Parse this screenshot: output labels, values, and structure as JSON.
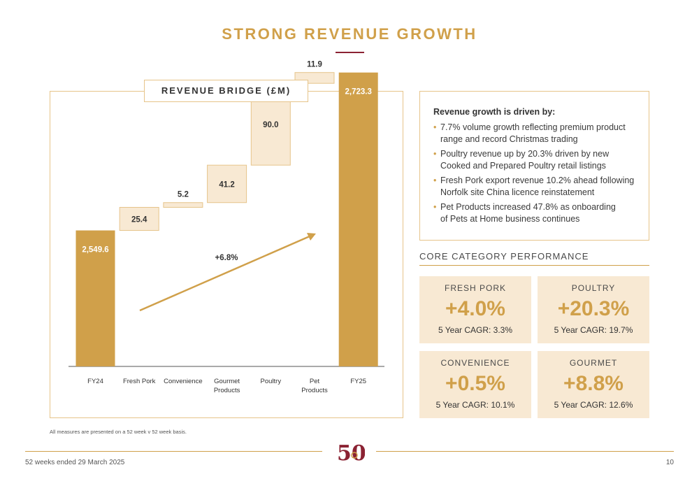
{
  "page": {
    "title": "STRONG REVENUE GROWTH",
    "footnote": "All measures are presented on a 52 week v 52 week basis.",
    "footer_left": "52 weeks ended 29 March 2025",
    "page_number": "10"
  },
  "chart_panel": {
    "header": "REVENUE BRIDGE (£M)"
  },
  "chart_data": {
    "type": "waterfall",
    "title": "REVENUE BRIDGE (£M)",
    "categories": [
      "FY24",
      "Fresh Pork",
      "Convenience",
      "Gourmet Products",
      "Poultry",
      "Pet Products",
      "FY25"
    ],
    "category_lines": [
      [
        "FY24"
      ],
      [
        "Fresh Pork"
      ],
      [
        "Convenience"
      ],
      [
        "Gourmet",
        "Products"
      ],
      [
        "Poultry"
      ],
      [
        "Pet",
        "Products"
      ],
      [
        "FY25"
      ]
    ],
    "values": [
      2549.6,
      25.4,
      5.2,
      41.2,
      90.0,
      11.9,
      2723.3
    ],
    "value_labels": [
      "2,549.6",
      "25.4",
      "5.2",
      "41.2",
      "90.0",
      "11.9",
      "2,723.3"
    ],
    "kinds": [
      "total",
      "increase",
      "increase",
      "increase",
      "increase",
      "increase",
      "total"
    ],
    "growth_label": "+6.8%",
    "colors": {
      "total": "#d0a04a",
      "increase_fill": "#f8e9d3",
      "increase_stroke": "#e6c48a",
      "arrow": "#d0a04a",
      "axis": "#555555"
    },
    "grid": false
  },
  "drivers": {
    "heading": "Revenue growth is driven by:",
    "bullet": "•",
    "items": [
      [
        "7.7% volume growth reflecting premium product",
        "range and record Christmas trading"
      ],
      [
        "Poultry revenue up by 20.3% driven by new",
        "Cooked and Prepared Poultry retail listings"
      ],
      [
        "Fresh Pork export revenue 10.2% ahead following",
        "Norfolk site China licence reinstatement"
      ],
      [
        "Pet Products increased 47.8% as onboarding",
        "of Pets at Home business continues"
      ]
    ]
  },
  "core": {
    "title": "CORE CATEGORY PERFORMANCE",
    "tiles": [
      {
        "name": "FRESH PORK",
        "value": "+4.0%",
        "cagr": "5 Year CAGR: 3.3%"
      },
      {
        "name": "POULTRY",
        "value": "+20.3%",
        "cagr": "5 Year CAGR: 19.7%"
      },
      {
        "name": "CONVENIENCE",
        "value": "+0.5%",
        "cagr": "5 Year CAGR: 10.1%"
      },
      {
        "name": "GOURMET",
        "value": "+8.8%",
        "cagr": "5 Year CAGR: 12.6%"
      }
    ]
  },
  "logo": {
    "text": "50",
    "colors": {
      "primary": "#8b2233",
      "accent": "#d0a04a"
    }
  }
}
